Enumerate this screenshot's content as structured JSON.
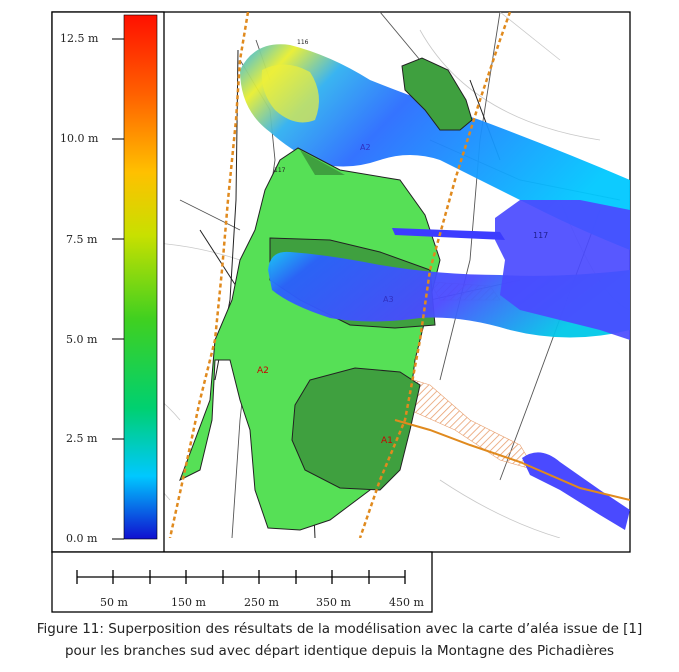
{
  "legend": {
    "ticks": [
      "12.5 m",
      "10.0 m",
      "7.5 m",
      "5.0 m",
      "2.5 m",
      "0.0 m"
    ]
  },
  "scalebar": {
    "labels": [
      "50 m",
      "150 m",
      "250 m",
      "350 m",
      "450 m"
    ]
  },
  "zones": {
    "a1": "A1",
    "a2_left": "A2",
    "a2_top": "A2",
    "a3": "A3",
    "n117_left": "117",
    "n117_right": "117",
    "n116": "116"
  },
  "caption": {
    "line1": "Figure 11: Superposition des résultats de la modélisation avec la carte d’aléa issue de [1]",
    "line2": "pour les branches sud avec départ identique depuis la Montagne des Pichadières"
  },
  "colors": {
    "hazard_light": "#56e056",
    "hazard_dark": "#3fa03f",
    "hatch": "#e8a070",
    "track_orange": "#e08a1e",
    "flow_blue": "#4a4aff"
  }
}
